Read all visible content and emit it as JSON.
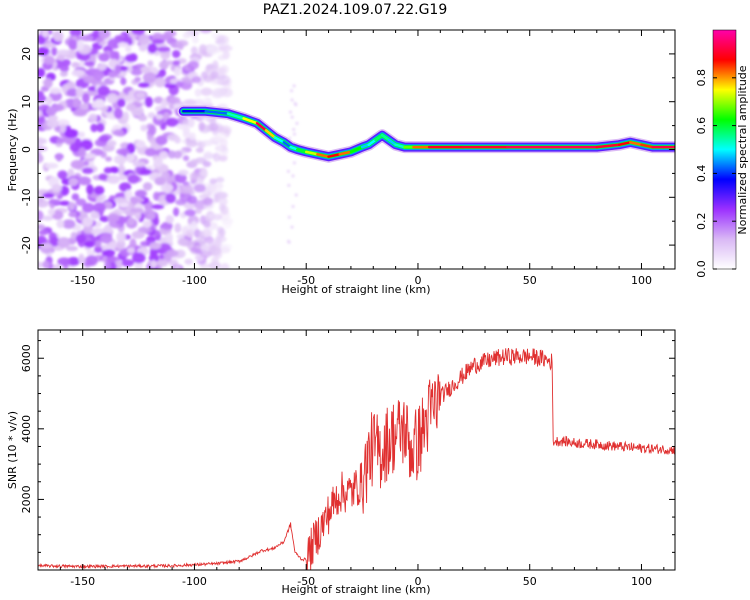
{
  "figure": {
    "title": "PAZ1.2024.109.07.22.G19"
  },
  "colors": {
    "snr_line": "#e03030",
    "colorscale": [
      "#ffffff",
      "#d9b8f5",
      "#9b30ff",
      "#0000ff",
      "#00ffff",
      "#00ff00",
      "#ffff00",
      "#ff0000",
      "#ff00aa"
    ]
  },
  "chart_data": [
    {
      "type": "heatmap",
      "title": "",
      "xlabel": "Height of straight line (km)",
      "ylabel": "Frequency (Hz)",
      "xlim": [
        -170,
        115
      ],
      "ylim": [
        -25,
        25
      ],
      "xticks": [
        -150,
        -100,
        -50,
        0,
        50,
        100
      ],
      "yticks": [
        -20,
        -10,
        0,
        10,
        20
      ],
      "colorbar": {
        "label": "Normalized spectral amplitude",
        "range": [
          0,
          1
        ],
        "ticks": [
          0.0,
          0.2,
          0.4,
          0.6,
          0.8
        ]
      },
      "ridge": {
        "description_x": [
          -105,
          -95,
          -85,
          -78,
          -72,
          -68,
          -64,
          -60,
          -57,
          -54,
          -50,
          -45,
          -40,
          -35,
          -30,
          -25,
          -22,
          -19,
          -16,
          -13,
          -10,
          -6,
          -2,
          5,
          20,
          40,
          60,
          80,
          90,
          95,
          100,
          105,
          110,
          115
        ],
        "frequency": [
          8,
          8,
          7.5,
          6.5,
          5.5,
          4,
          2.5,
          1.5,
          0.5,
          0,
          -0.5,
          -1,
          -1.5,
          -1,
          -0.5,
          0.5,
          1,
          2,
          3,
          2,
          1,
          0.5,
          0.5,
          0.5,
          0.5,
          0.5,
          0.5,
          0.5,
          1,
          1.5,
          1,
          0.5,
          0.5,
          0.5
        ],
        "amplitude": [
          0.35,
          0.4,
          0.45,
          0.6,
          0.9,
          0.95,
          0.6,
          0.4,
          0.45,
          0.55,
          0.65,
          0.8,
          0.85,
          0.9,
          0.75,
          0.5,
          0.45,
          0.55,
          0.6,
          0.5,
          0.45,
          0.6,
          0.75,
          0.9,
          0.9,
          0.92,
          0.95,
          0.92,
          0.9,
          0.85,
          0.8,
          0.9,
          0.95,
          0.9
        ]
      },
      "noise_region_x": [
        -170,
        -85
      ]
    },
    {
      "type": "line",
      "title": "",
      "xlabel": "Height of straight line (km)",
      "ylabel": "SNR (10 * v/v)",
      "xlim": [
        -170,
        115
      ],
      "ylim": [
        0,
        6800
      ],
      "xticks": [
        -150,
        -100,
        -50,
        0,
        50,
        100
      ],
      "yticks": [
        2000,
        4000,
        6000
      ],
      "series": [
        {
          "x": [
            -170,
            -150,
            -130,
            -110,
            -100,
            -90,
            -80,
            -75,
            -70,
            -65,
            -60,
            -57,
            -55,
            -52,
            -50,
            -45,
            -40,
            -35,
            -30,
            -25,
            -22,
            -20,
            -17,
            -14,
            -11,
            -8,
            -6,
            -3,
            0,
            5,
            10,
            15,
            20,
            25,
            30,
            35,
            40,
            45,
            50,
            55,
            60,
            60.5,
            65,
            70,
            80,
            90,
            100,
            110,
            115
          ],
          "values": [
            120,
            100,
            110,
            120,
            150,
            180,
            250,
            380,
            550,
            600,
            800,
            1300,
            500,
            300,
            300,
            1000,
            1600,
            2200,
            2200,
            2500,
            3200,
            3500,
            3300,
            3600,
            3800,
            3900,
            4000,
            3400,
            3600,
            4400,
            4900,
            5200,
            5500,
            5800,
            5900,
            6000,
            6050,
            6050,
            6050,
            6000,
            5900,
            3650,
            3650,
            3600,
            3560,
            3500,
            3450,
            3420,
            3400
          ]
        }
      ]
    }
  ]
}
